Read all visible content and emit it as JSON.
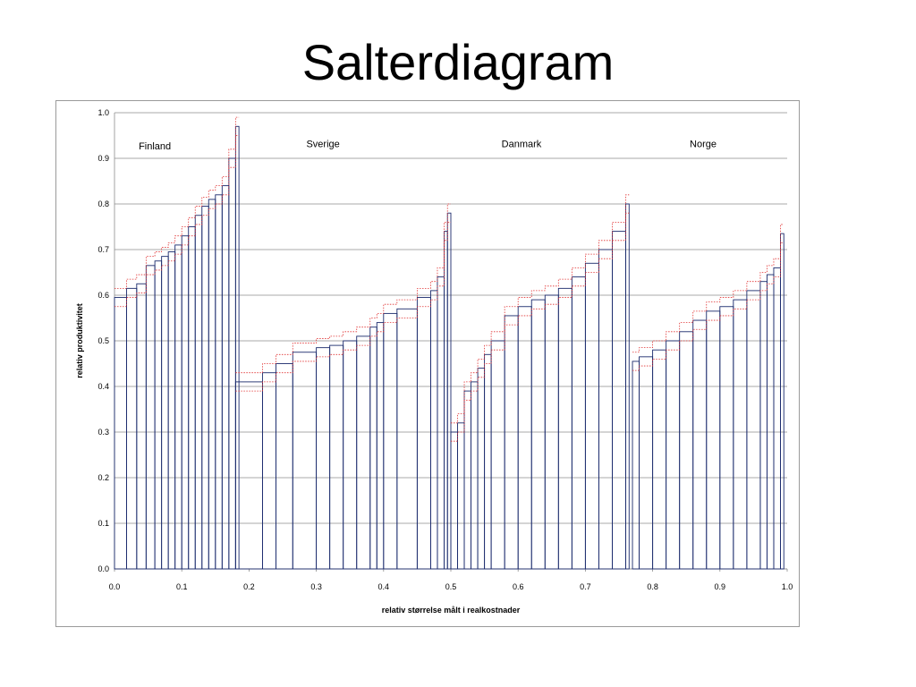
{
  "slide": {
    "title": "Salterdiagram"
  },
  "colors": {
    "bars": "#1a2a6c",
    "bounds": "#e03030",
    "grid": "#8c8c8c"
  },
  "chart_data": {
    "type": "bar",
    "title": "",
    "xlabel": "relativ størrelse målt i realkostnader",
    "ylabel": "relativ produktivitet",
    "xlim": [
      0.0,
      1.0
    ],
    "ylim": [
      0.0,
      1.0
    ],
    "xticks": [
      "0.0",
      "0.1",
      "0.2",
      "0.3",
      "0.4",
      "0.5",
      "0.6",
      "0.7",
      "0.8",
      "0.9",
      "1.0"
    ],
    "yticks": [
      "0.0",
      "0.1",
      "0.2",
      "0.3",
      "0.4",
      "0.5",
      "0.6",
      "0.7",
      "0.8",
      "0.9",
      "1.0"
    ],
    "grid": true,
    "legend": "none",
    "annotations": [
      {
        "text": "Finland",
        "x": 0.06,
        "y": 0.92
      },
      {
        "text": "Sverige",
        "x": 0.31,
        "y": 0.925
      },
      {
        "text": "Danmark",
        "x": 0.605,
        "y": 0.925
      },
      {
        "text": "Norge",
        "x": 0.875,
        "y": 0.925
      }
    ],
    "series": [
      {
        "name": "Finland",
        "x": [
          0.0,
          0.018,
          0.033,
          0.047,
          0.06,
          0.07,
          0.08,
          0.09,
          0.1,
          0.11,
          0.12,
          0.13,
          0.14,
          0.15,
          0.16,
          0.17,
          0.18
        ],
        "values": [
          0.595,
          0.615,
          0.625,
          0.665,
          0.675,
          0.685,
          0.695,
          0.71,
          0.73,
          0.75,
          0.775,
          0.795,
          0.81,
          0.82,
          0.84,
          0.9,
          0.97
        ]
      },
      {
        "name": "Sverige",
        "x": [
          0.18,
          0.22,
          0.24,
          0.265,
          0.3,
          0.32,
          0.34,
          0.36,
          0.38,
          0.39,
          0.4,
          0.42,
          0.45,
          0.47,
          0.48,
          0.49,
          0.495
        ],
        "values": [
          0.41,
          0.43,
          0.45,
          0.475,
          0.485,
          0.49,
          0.5,
          0.51,
          0.53,
          0.54,
          0.56,
          0.57,
          0.595,
          0.61,
          0.64,
          0.74,
          0.78
        ]
      },
      {
        "name": "Danmark",
        "x": [
          0.5,
          0.51,
          0.52,
          0.53,
          0.54,
          0.55,
          0.56,
          0.58,
          0.6,
          0.62,
          0.64,
          0.66,
          0.68,
          0.7,
          0.72,
          0.74,
          0.76
        ],
        "values": [
          0.3,
          0.32,
          0.39,
          0.41,
          0.44,
          0.47,
          0.5,
          0.555,
          0.575,
          0.59,
          0.6,
          0.615,
          0.64,
          0.67,
          0.7,
          0.74,
          0.8
        ]
      },
      {
        "name": "Norge",
        "x": [
          0.77,
          0.78,
          0.8,
          0.82,
          0.84,
          0.86,
          0.88,
          0.9,
          0.92,
          0.94,
          0.96,
          0.97,
          0.98,
          0.99
        ],
        "values": [
          0.455,
          0.465,
          0.48,
          0.5,
          0.52,
          0.545,
          0.565,
          0.575,
          0.59,
          0.61,
          0.63,
          0.645,
          0.66,
          0.735
        ]
      }
    ]
  }
}
